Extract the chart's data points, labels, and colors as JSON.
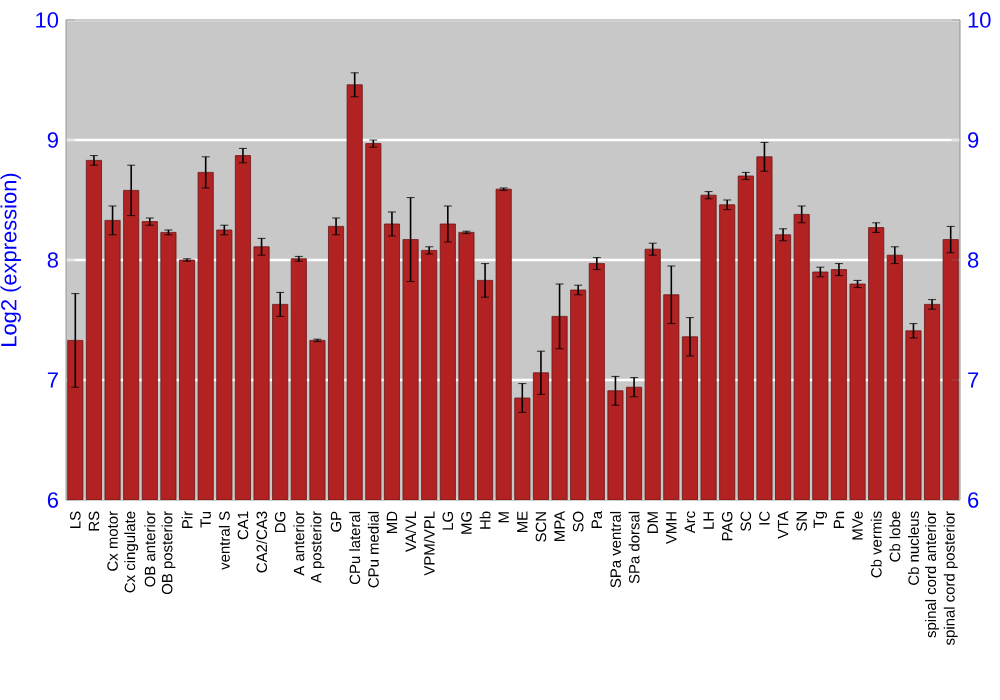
{
  "chart_data": {
    "type": "bar",
    "ylabel": "Log2 (expression)",
    "categories": [
      "LS",
      "RS",
      "Cx motor",
      "Cx cingulate",
      "OB anterior",
      "OB posterior",
      "Pir",
      "Tu",
      "ventral S",
      "CA1",
      "CA2/CA3",
      "DG",
      "A anterior",
      "A posterior",
      "GP",
      "CPu lateral",
      "CPu medial",
      "MD",
      "VA/VL",
      "VPM/VPL",
      "LG",
      "MG",
      "Hb",
      "M",
      "ME",
      "SCN",
      "MPA",
      "SO",
      "Pa",
      "SPa ventral",
      "SPa dorsal",
      "DM",
      "VMH",
      "Arc",
      "LH",
      "PAG",
      "SC",
      "IC",
      "VTA",
      "SN",
      "Tg",
      "Pn",
      "MVe",
      "Cb vermis",
      "Cb lobe",
      "Cb nucleus",
      "spinal cord anterior",
      "spinal cord posterior"
    ],
    "values": [
      7.33,
      8.83,
      8.33,
      8.58,
      8.32,
      8.23,
      8.0,
      8.73,
      8.25,
      8.87,
      8.11,
      7.63,
      8.01,
      7.33,
      8.28,
      9.46,
      8.97,
      8.3,
      8.17,
      8.08,
      8.3,
      8.23,
      7.83,
      8.59,
      6.85,
      7.06,
      7.53,
      7.75,
      7.97,
      6.91,
      6.94,
      8.09,
      7.71,
      7.36,
      8.54,
      8.46,
      8.7,
      8.86,
      8.21,
      8.38,
      7.9,
      7.92,
      7.8,
      8.27,
      8.04,
      7.41,
      7.63,
      8.17
    ],
    "errors": [
      0.39,
      0.04,
      0.12,
      0.21,
      0.03,
      0.02,
      0.01,
      0.13,
      0.04,
      0.06,
      0.07,
      0.1,
      0.02,
      0.01,
      0.07,
      0.1,
      0.03,
      0.1,
      0.35,
      0.03,
      0.15,
      0.01,
      0.14,
      0.01,
      0.12,
      0.18,
      0.27,
      0.04,
      0.05,
      0.12,
      0.08,
      0.05,
      0.24,
      0.16,
      0.03,
      0.04,
      0.03,
      0.12,
      0.05,
      0.07,
      0.04,
      0.05,
      0.03,
      0.04,
      0.07,
      0.06,
      0.04,
      0.11
    ],
    "color": "#b22222",
    "ylim": [
      6,
      10
    ],
    "yticks": [
      6,
      7,
      8,
      9,
      10
    ],
    "y2lim": [
      6,
      10
    ],
    "y2ticks": [
      6,
      7,
      8,
      9,
      10
    ],
    "grid": "y"
  }
}
